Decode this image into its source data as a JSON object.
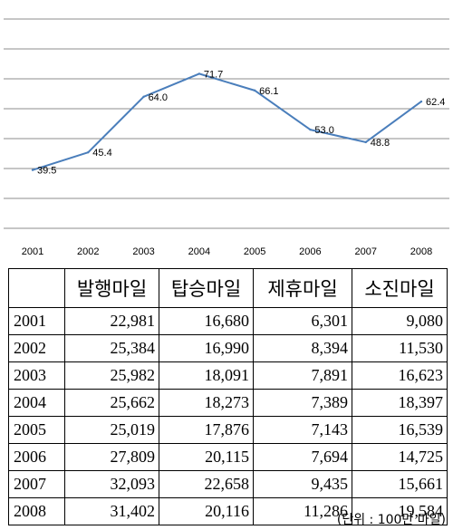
{
  "chart_data": {
    "type": "line",
    "x": [
      "2001",
      "2002",
      "2003",
      "2004",
      "2005",
      "2006",
      "2007",
      "2008"
    ],
    "series": [
      {
        "values": [
          39.5,
          45.4,
          64.0,
          71.7,
          66.1,
          53.0,
          48.8,
          62.4
        ],
        "labels": [
          "39.5",
          "45.4",
          "64.0",
          "71.7",
          "66.1",
          "53.0",
          "48.8",
          "62.4"
        ],
        "color": "#4a7ebb"
      }
    ],
    "ylim": [
      20,
      90
    ],
    "yticks": [
      20,
      30,
      40,
      50,
      60,
      70,
      80,
      90
    ],
    "grid": true,
    "grid_color": "#8c8c8c",
    "title": "",
    "xlabel": "",
    "ylabel": ""
  },
  "table": {
    "headers": [
      "",
      "발행마일",
      "탑승마일",
      "제휴마일",
      "소진마일"
    ],
    "rows": [
      [
        "2001",
        "22,981",
        "16,680",
        "6,301",
        "9,080"
      ],
      [
        "2002",
        "25,384",
        "16,990",
        "8,394",
        "11,530"
      ],
      [
        "2003",
        "25,982",
        "18,091",
        "7,891",
        "16,623"
      ],
      [
        "2004",
        "25,662",
        "18,273",
        "7,389",
        "18,397"
      ],
      [
        "2005",
        "25,019",
        "17,876",
        "7,143",
        "16,539"
      ],
      [
        "2006",
        "27,809",
        "20,115",
        "7,694",
        "14,725"
      ],
      [
        "2007",
        "32,093",
        "22,658",
        "9,435",
        "15,661"
      ],
      [
        "2008",
        "31,402",
        "20,116",
        "11,286",
        "19,584"
      ]
    ]
  },
  "unit_note": "(단위 : 100만 마일)"
}
